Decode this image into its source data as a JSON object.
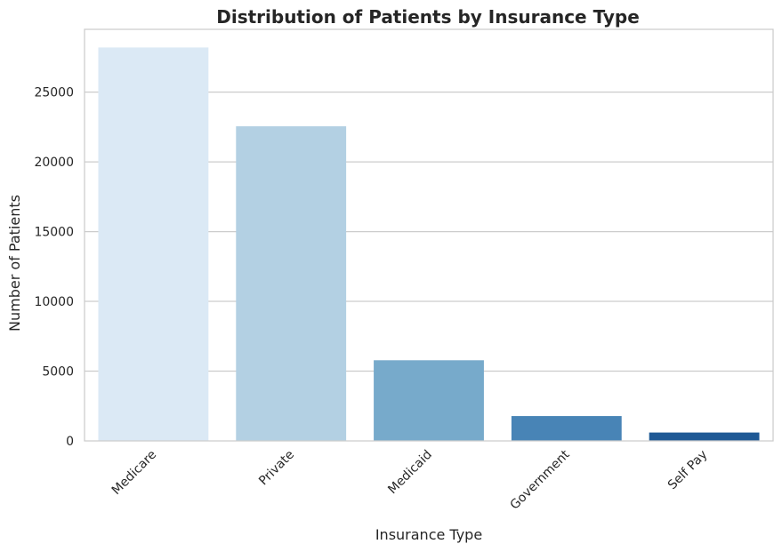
{
  "chart_data": {
    "type": "bar",
    "title": "Distribution of Patients by Insurance Type",
    "xlabel": "Insurance Type",
    "ylabel": "Number of Patients",
    "categories": [
      "Medicare",
      "Private",
      "Medicaid",
      "Government",
      "Self Pay"
    ],
    "values": [
      28200,
      22550,
      5780,
      1780,
      600
    ],
    "ylim": [
      0,
      29500
    ],
    "yticks": [
      0,
      5000,
      10000,
      15000,
      20000,
      25000
    ],
    "ytick_labels": [
      "0",
      "5000",
      "10000",
      "15000",
      "20000",
      "25000"
    ],
    "grid": "horizontal",
    "colors": [
      "#dbe9f5",
      "#b3d0e3",
      "#77aacb",
      "#4884b6",
      "#1f5995"
    ],
    "axes_edge_color": "#cccccc",
    "grid_color": "#cccccc"
  }
}
